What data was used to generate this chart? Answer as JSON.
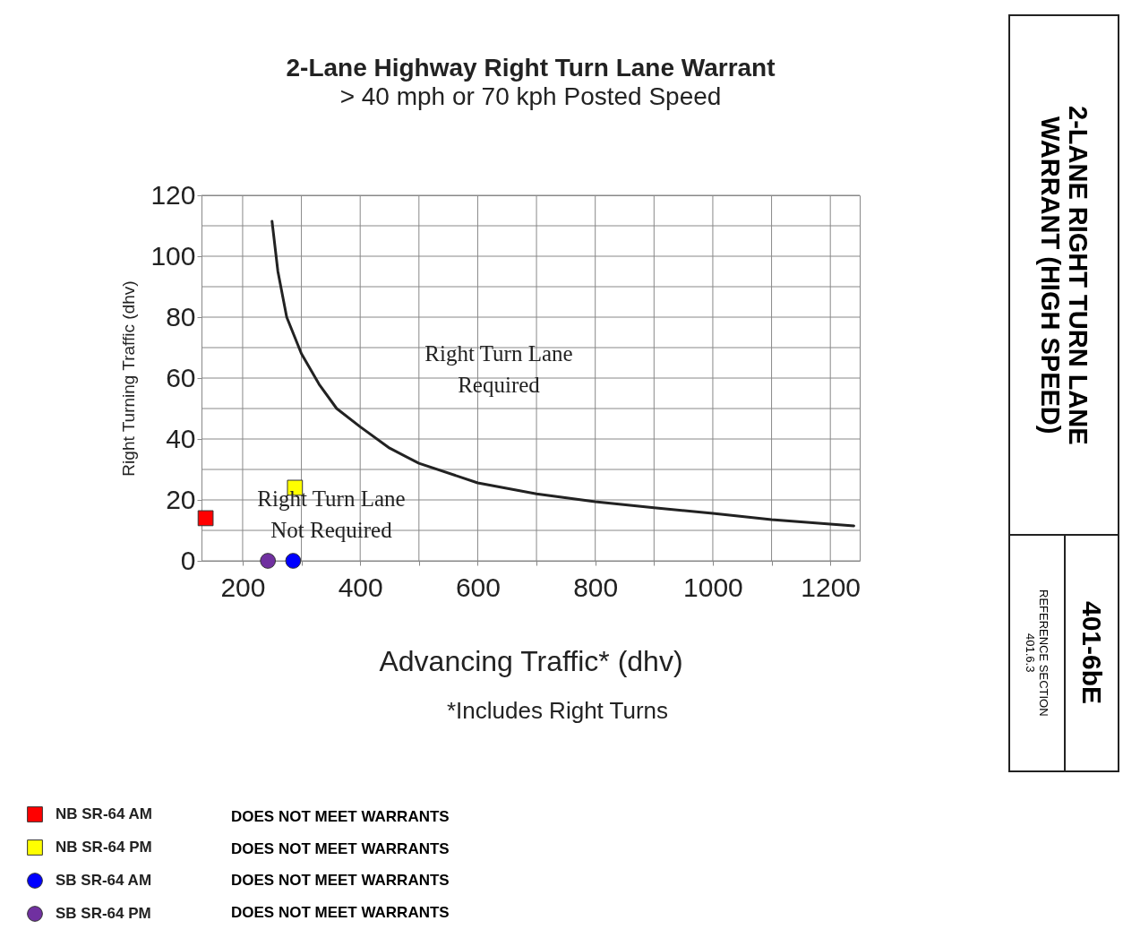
{
  "chart_data": {
    "type": "scatter",
    "title": "2-Lane Highway Right Turn Lane Warrant",
    "subtitle": "> 40 mph or 70 kph Posted Speed",
    "xlabel": "Advancing Traffic* (dhv)",
    "ylabel": "Right Turning Traffic (dhv)",
    "xlim": [
      130,
      1250
    ],
    "ylim": [
      0,
      120
    ],
    "xticks": [
      200,
      {
        "value": 300,
        "label": null
      },
      400,
      {
        "value": 500,
        "label": null
      },
      600,
      {
        "value": 700,
        "label": null
      },
      800,
      {
        "value": 900,
        "label": null
      },
      1000,
      {
        "value": 1100,
        "label": null
      },
      1200
    ],
    "yticks": [
      0,
      {
        "value": 10,
        "label": null
      },
      20,
      {
        "value": 30,
        "label": null
      },
      40,
      {
        "value": 50,
        "label": null
      },
      60,
      {
        "value": 70,
        "label": null
      },
      80,
      {
        "value": 90,
        "label": null
      },
      100,
      {
        "value": 110,
        "label": null
      },
      120
    ],
    "grid": true,
    "legend": "bottom left",
    "series": [
      {
        "type": "line",
        "color": "#222222",
        "x": [
          250,
          260,
          275,
          300,
          330,
          360,
          400,
          450,
          500,
          600,
          700,
          800,
          900,
          1000,
          1100,
          1240
        ],
        "values": [
          111.5,
          95,
          80,
          68,
          58,
          50,
          44,
          37,
          32,
          25.6,
          22,
          19.4,
          17.4,
          15.6,
          13.5,
          11.5
        ]
      },
      {
        "name": "NB SR-64 AM",
        "color": "#ff0000",
        "marker": "square",
        "x": [
          137
        ],
        "values": [
          14
        ]
      },
      {
        "name": "NB SR-64 PM",
        "color": "#ffff00",
        "marker": "square",
        "x": [
          289
        ],
        "values": [
          24
        ]
      },
      {
        "name": "SB SR-64 AM",
        "color": "#0000ff",
        "marker": "circle",
        "x": [
          286
        ],
        "values": [
          0
        ]
      },
      {
        "name": "SB SR-64 PM",
        "color": "#7030a0",
        "marker": "circle",
        "x": [
          243
        ],
        "values": [
          0
        ]
      }
    ],
    "annotations": [
      "Right Turn Lane Required",
      "Right Turn Lane Not Required",
      "*Includes Right Turns",
      "2-LANE RIGHT TURN LANE WARRANT (HIGH SPEED)",
      "401-6bE",
      "REFERENCE SECTION 401.6.3",
      "DOES NOT MEET WARRANTS",
      "DOES NOT MEET WARRANTS",
      "DOES NOT MEET WARRANTS",
      "DOES NOT MEET WARRANTS"
    ]
  }
}
